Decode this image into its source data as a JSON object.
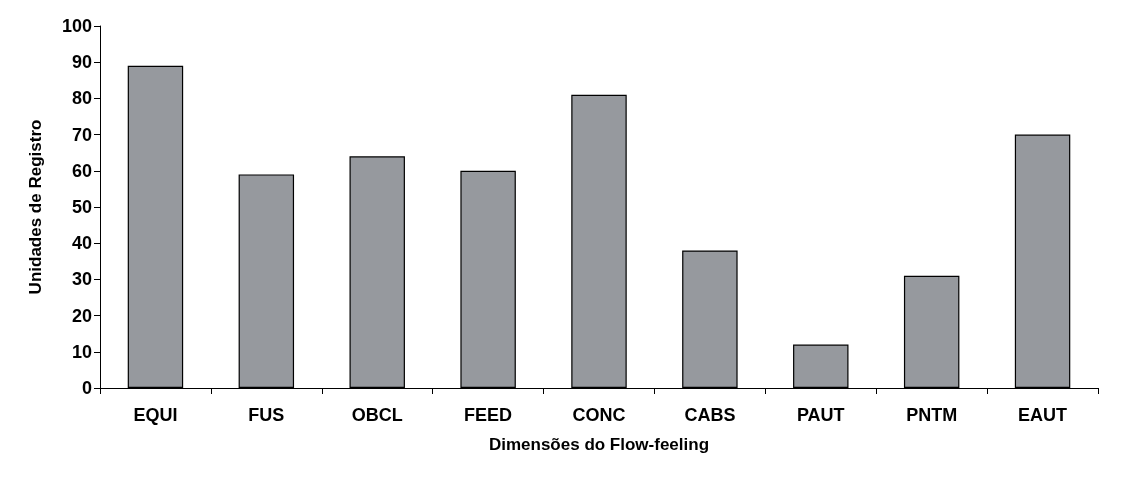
{
  "chart_data": {
    "type": "bar",
    "xlabel": "Dimensões do Flow-feeling",
    "ylabel": "Unidades de Registro",
    "categories": [
      "EQUI",
      "FUS",
      "OBCL",
      "FEED",
      "CONC",
      "CABS",
      "PAUT",
      "PNTM",
      "EAUT"
    ],
    "values": [
      89,
      59,
      64,
      60,
      81,
      38,
      12,
      31,
      70
    ],
    "color": "#96999e",
    "ylim": [
      0,
      100
    ],
    "yticks": [
      0,
      10,
      20,
      30,
      40,
      50,
      60,
      70,
      80,
      90,
      100
    ],
    "grid": false
  }
}
